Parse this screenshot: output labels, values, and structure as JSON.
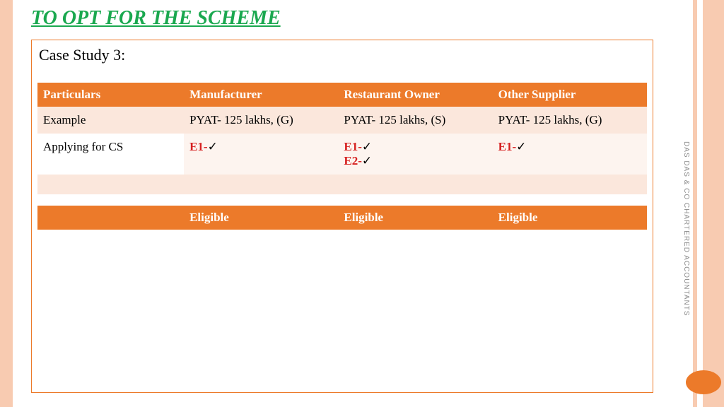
{
  "title": "TO OPT FOR THE SCHEME",
  "subtitle": "Case Study 3:",
  "side_text": "DAS DAS & CO CHARTERED ACCOUNTANTS",
  "colors": {
    "stripe": "#f8cbb1",
    "accent": "#ec7a2a",
    "title_green": "#1aa84f",
    "e_red": "#d62020"
  },
  "table": {
    "headers": [
      "Particulars",
      "Manufacturer",
      "Restaurant Owner",
      "Other Supplier"
    ],
    "rows": [
      {
        "kind": "data-a",
        "cells": [
          "Example",
          "PYAT- 125 lakhs, (G)",
          "PYAT- 125 lakhs, (S)",
          "PYAT- 125 lakhs, (G)"
        ]
      },
      {
        "kind": "data-b",
        "label": "Applying for CS",
        "entries": [
          [
            {
              "code": "E1-",
              "check": "✓"
            }
          ],
          [
            {
              "code": "E1-",
              "check": "✓"
            },
            {
              "code": "E2-",
              "check": "✓"
            }
          ],
          [
            {
              "code": "E1-",
              "check": "✓"
            }
          ]
        ]
      }
    ],
    "eligibility": [
      "",
      "Eligible",
      "Eligible",
      "Eligible"
    ]
  }
}
